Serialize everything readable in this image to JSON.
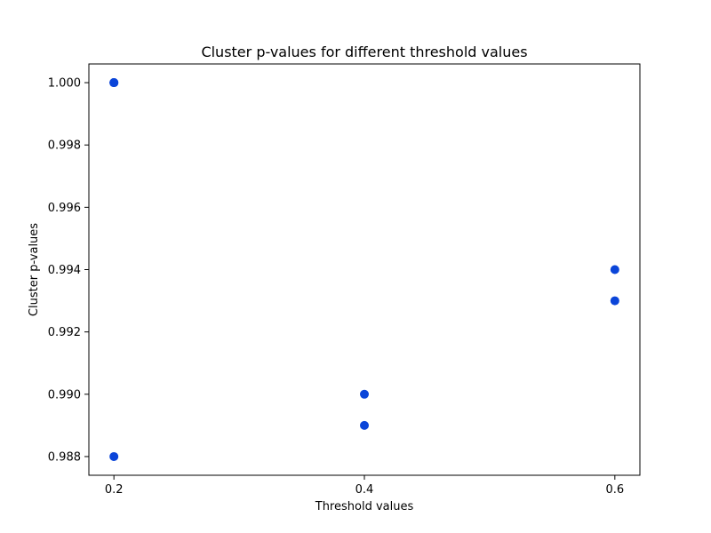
{
  "chart_data": {
    "type": "scatter",
    "title": "Cluster p-values for different threshold values",
    "xlabel": "Threshold values",
    "ylabel": "Cluster p-values",
    "xlim": [
      0.18,
      0.62
    ],
    "ylim": [
      0.9874,
      1.0006
    ],
    "x_ticks": [
      0.2,
      0.4,
      0.6
    ],
    "x_tick_labels": [
      "0.2",
      "0.4",
      "0.6"
    ],
    "y_ticks": [
      0.988,
      0.99,
      0.992,
      0.994,
      0.996,
      0.998,
      1.0
    ],
    "y_tick_labels": [
      "0.988",
      "0.990",
      "0.992",
      "0.994",
      "0.996",
      "0.998",
      "1.000"
    ],
    "grid": false,
    "marker_color": "#0b45d9",
    "points": [
      {
        "x": 0.2,
        "y": 1.0
      },
      {
        "x": 0.2,
        "y": 1.0
      },
      {
        "x": 0.2,
        "y": 1.0
      },
      {
        "x": 0.2,
        "y": 0.988
      },
      {
        "x": 0.4,
        "y": 0.99
      },
      {
        "x": 0.4,
        "y": 0.989
      },
      {
        "x": 0.6,
        "y": 0.994
      },
      {
        "x": 0.6,
        "y": 0.993
      }
    ]
  }
}
